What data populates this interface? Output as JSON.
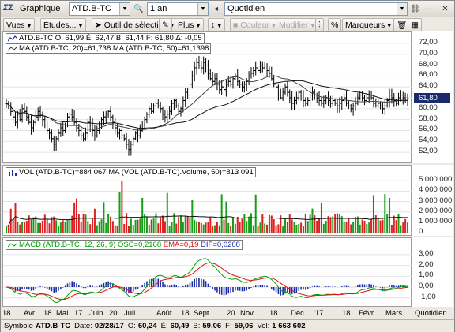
{
  "titlebar": {
    "app_title": "Graphique",
    "symbol_value": "ATD.B-TC",
    "range_value": "1 an",
    "interval_value": "Quotidien"
  },
  "toolbar": {
    "views": "Vues",
    "studies": "Études...",
    "selection_tool": "Outil de sélection",
    "plus": "Plus",
    "color": "Couleur",
    "modify": "Modifier",
    "markers": "Marqueurs"
  },
  "colors": {
    "bg": "#ffffff",
    "up": "#1a9c1a",
    "down": "#e02020",
    "price_line": "#000000",
    "macd": "#00a000",
    "ema": "#e01010",
    "dif": "#1c2fa8",
    "tag": "#1a2b6d"
  },
  "price_panel": {
    "header_symbol": "ATD.B-TC",
    "header_values": [
      "O: 61,99",
      "É: 62,47",
      "B: 61,44",
      "F: 61,80",
      "Δ: -0,05"
    ],
    "ma_label": "MA (ATD.B-TC, 20)=61,738",
    "ma2_label": "MA (ATD.B-TC, 50)=61,1398",
    "axis_ticks": [
      "72,00",
      "70,00",
      "68,00",
      "66,00",
      "64,00",
      "62,00",
      "60,00",
      "58,00",
      "56,00",
      "54,00",
      "52,00"
    ],
    "last_price": "61,80"
  },
  "volume_panel": {
    "vol_label": "VOL (ATD.B-TC)=884 067",
    "ma_label": "MA (VOL (ATD.B-TC).Volume, 50)=813 091",
    "axis_ticks": [
      "5 000 000",
      "4 000 000",
      "3 000 000",
      "2 000 000",
      "1 000 000",
      "0"
    ]
  },
  "macd_panel": {
    "macd_label": "MACD (ATD.B-TC, 12, 26, 9)",
    "osc_label": "OSC=0,2168",
    "ema_label": "EMA=0,19",
    "dif_label": "DIF=0,0268",
    "axis_ticks": [
      "3,00",
      "2,00",
      "1,00",
      "0,00",
      "-1,00"
    ]
  },
  "date_axis": [
    "18",
    "Avr",
    "18",
    "Mai",
    "17",
    "Juin",
    "20",
    "Juil",
    "Août",
    "18",
    "Sept",
    "20",
    "Nov",
    "18",
    "Déc",
    "'17",
    "18",
    "Févr",
    "Mars",
    "Quotidien"
  ],
  "status_bar": [
    {
      "label": "Symbole",
      "value": "ATD.B-TC"
    },
    {
      "label": "Date:",
      "value": "02/28/17"
    },
    {
      "label": "O:",
      "value": "60,24"
    },
    {
      "label": "É:",
      "value": "60,49"
    },
    {
      "label": "B:",
      "value": "59,06"
    },
    {
      "label": "F:",
      "value": "59,06"
    },
    {
      "label": "Vol:",
      "value": "1 663 602"
    }
  ],
  "chart_data": {
    "type": "line",
    "price_range": [
      51,
      73
    ],
    "closes": [
      61,
      60.5,
      59.5,
      58.5,
      57.5,
      59,
      58,
      60,
      59.5,
      58.5,
      57.5,
      56.5,
      57.5,
      58.5,
      59.5,
      59,
      58,
      57,
      56,
      55.5,
      54.5,
      53.5,
      54.5,
      55.5,
      56.5,
      56,
      57,
      58.5,
      59,
      58.5,
      57.5,
      56.5,
      56,
      55,
      54.5,
      55.5,
      57.5,
      57,
      56,
      55,
      56,
      57,
      58,
      58.5,
      59,
      59.5,
      58.5,
      57.5,
      56.5,
      55.5,
      56,
      55,
      54.5,
      53.5,
      52.5,
      53.5,
      54.5,
      55.5,
      55,
      56,
      57,
      58,
      59,
      60,
      59.5,
      60.5,
      61,
      60.5,
      60,
      59,
      58.5,
      59,
      59.5,
      61,
      61.5,
      60.5,
      59.5,
      60,
      61.5,
      63,
      62.5,
      64.5,
      66,
      67.5,
      68.5,
      68,
      67.5,
      68.5,
      68,
      66.5,
      65.5,
      65,
      65.5,
      64.5,
      63.5,
      64,
      63.5,
      64.5,
      65,
      64.5,
      65.5,
      66,
      65,
      64.5,
      64,
      64.5,
      65,
      66,
      66.5,
      67,
      67.5,
      67,
      68,
      67.5,
      68,
      67,
      66.5,
      65.5,
      64.5,
      64,
      62.5,
      62,
      63,
      64,
      63,
      62,
      61,
      61.5,
      62,
      63,
      62.5,
      61.5,
      61,
      61.5,
      62.5,
      63,
      62.5,
      62,
      61.5,
      61,
      61.5,
      62,
      61.5,
      61,
      61.5,
      61,
      60.5,
      61,
      61.5,
      62,
      61,
      60.5,
      60,
      60.5,
      61,
      62,
      62.5,
      62,
      61.5,
      62,
      62.5,
      62,
      61,
      60.5,
      61,
      60.5,
      60,
      60.5,
      61.5,
      62.5,
      62,
      61.5,
      61,
      62,
      62.5,
      62,
      61.5,
      61.8
    ]
  }
}
